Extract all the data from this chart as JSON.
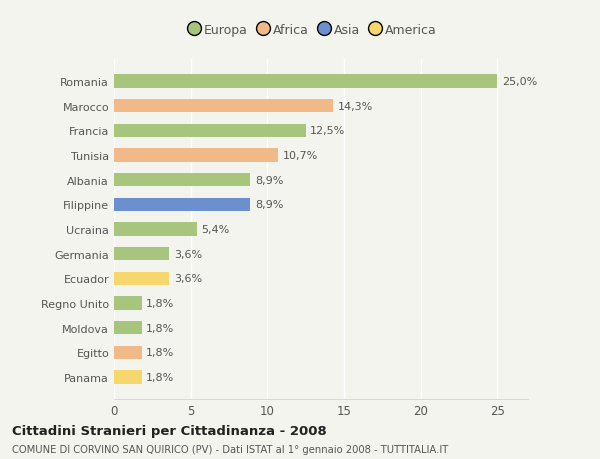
{
  "categories": [
    "Romania",
    "Marocco",
    "Francia",
    "Tunisia",
    "Albania",
    "Filippine",
    "Ucraina",
    "Germania",
    "Ecuador",
    "Regno Unito",
    "Moldova",
    "Egitto",
    "Panama"
  ],
  "values": [
    25.0,
    14.3,
    12.5,
    10.7,
    8.9,
    8.9,
    5.4,
    3.6,
    3.6,
    1.8,
    1.8,
    1.8,
    1.8
  ],
  "labels": [
    "25,0%",
    "14,3%",
    "12,5%",
    "10,7%",
    "8,9%",
    "8,9%",
    "5,4%",
    "3,6%",
    "3,6%",
    "1,8%",
    "1,8%",
    "1,8%",
    "1,8%"
  ],
  "colors": [
    "#a8c57e",
    "#f0b987",
    "#a8c57e",
    "#f0b987",
    "#a8c57e",
    "#6b8fcf",
    "#a8c57e",
    "#a8c57e",
    "#f5d76e",
    "#a8c57e",
    "#a8c57e",
    "#f0b987",
    "#f5d76e"
  ],
  "continent_colors": {
    "Europa": "#a8c57e",
    "Africa": "#f0b987",
    "Asia": "#6b8fcf",
    "America": "#f5d76e"
  },
  "xlim": [
    0,
    27
  ],
  "xticks": [
    0,
    5,
    10,
    15,
    20,
    25
  ],
  "title": "Cittadini Stranieri per Cittadinanza - 2008",
  "subtitle": "COMUNE DI CORVINO SAN QUIRICO (PV) - Dati ISTAT al 1° gennaio 2008 - TUTTITALIA.IT",
  "background_color": "#f4f4ee",
  "bar_height": 0.55,
  "grid_color": "#ffffff",
  "text_color": "#555555",
  "label_fontsize": 8.0,
  "ytick_fontsize": 8.0,
  "xtick_fontsize": 8.5
}
